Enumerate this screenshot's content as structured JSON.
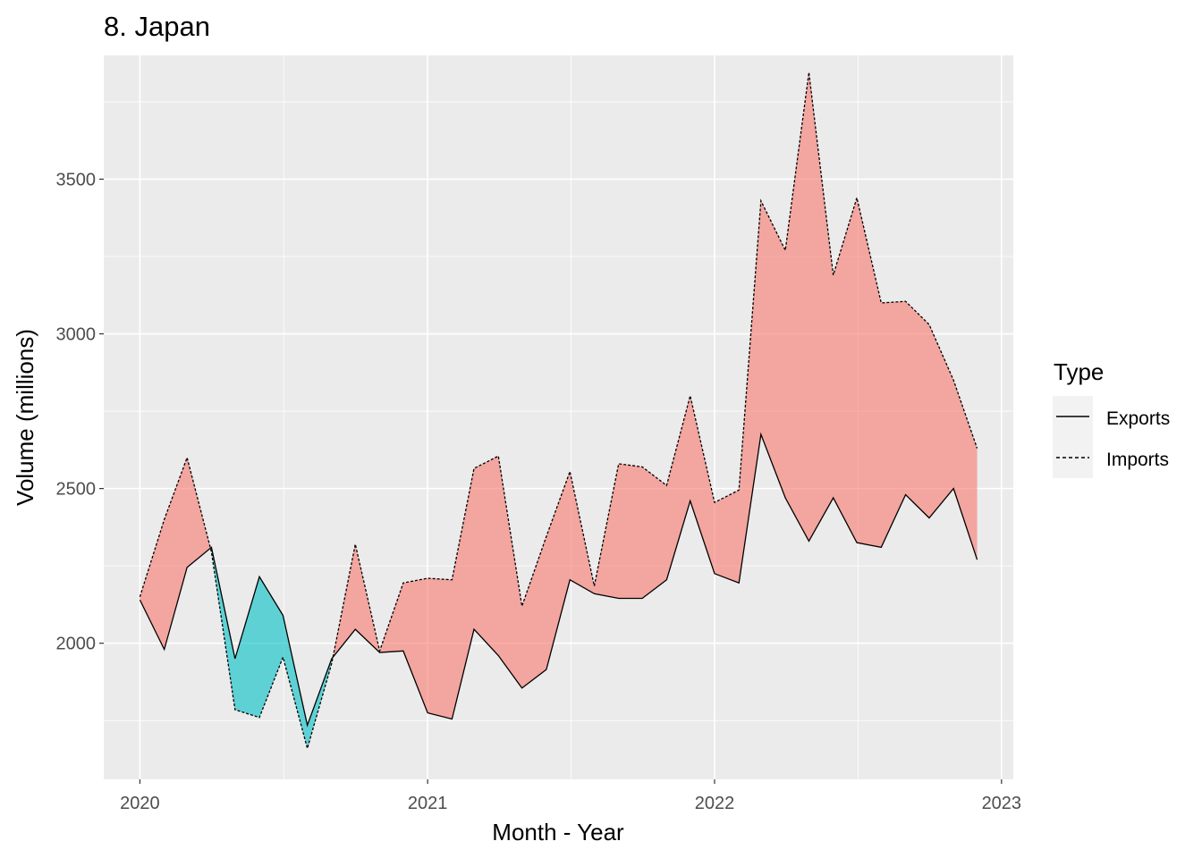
{
  "chart_data": {
    "type": "area",
    "title": "8. Japan",
    "xlabel": "Month - Year",
    "ylabel": "Volume (millions)",
    "xlim": [
      "2019-11-16",
      "2023-01-16"
    ],
    "ylim": [
      1560,
      3900
    ],
    "x_ticks": [
      {
        "date": "2020-01-01",
        "label": "2020"
      },
      {
        "date": "2021-01-01",
        "label": "2021"
      },
      {
        "date": "2022-01-01",
        "label": "2022"
      },
      {
        "date": "2023-01-01",
        "label": "2023"
      }
    ],
    "y_ticks": [
      2000,
      2500,
      3000,
      3500
    ],
    "y_minor_ticks": [
      1750,
      2250,
      2750,
      3250,
      3750
    ],
    "grid": true,
    "fill_colors": {
      "imports_higher": "#F8766D",
      "exports_higher": "#00BFC4"
    },
    "legend": {
      "title": "Type",
      "position": "right",
      "entries": [
        {
          "label": "Exports",
          "linetype": "solid"
        },
        {
          "label": "Imports",
          "linetype": "dashed"
        }
      ]
    },
    "x": [
      "2020-01",
      "2020-02",
      "2020-03",
      "2020-04",
      "2020-05",
      "2020-06",
      "2020-07",
      "2020-08",
      "2020-09",
      "2020-10",
      "2020-11",
      "2020-12",
      "2021-01",
      "2021-02",
      "2021-03",
      "2021-04",
      "2021-05",
      "2021-06",
      "2021-07",
      "2021-08",
      "2021-09",
      "2021-10",
      "2021-11",
      "2021-12",
      "2022-01",
      "2022-02",
      "2022-03",
      "2022-04",
      "2022-05",
      "2022-06",
      "2022-07",
      "2022-08",
      "2022-09",
      "2022-10",
      "2022-11",
      "2022-12"
    ],
    "series": [
      {
        "name": "Exports",
        "values": [
          2140,
          1980,
          2245,
          2310,
          1950,
          2215,
          2090,
          1735,
          1950,
          2045,
          1970,
          1975,
          1775,
          1755,
          2045,
          1960,
          1855,
          1915,
          2205,
          2160,
          2145,
          2145,
          2205,
          2460,
          2225,
          2195,
          2675,
          2470,
          2330,
          2470,
          2325,
          2310,
          2480,
          2405,
          2500,
          2270
        ]
      },
      {
        "name": "Imports",
        "values": [
          2150,
          2400,
          2600,
          2295,
          1785,
          1760,
          1955,
          1660,
          1935,
          2320,
          1975,
          2195,
          2210,
          2205,
          2565,
          2605,
          2120,
          2345,
          2555,
          2185,
          2580,
          2570,
          2510,
          2800,
          2455,
          2495,
          3430,
          3270,
          3845,
          3190,
          3440,
          3100,
          3105,
          3030,
          2850,
          2630
        ]
      }
    ]
  }
}
